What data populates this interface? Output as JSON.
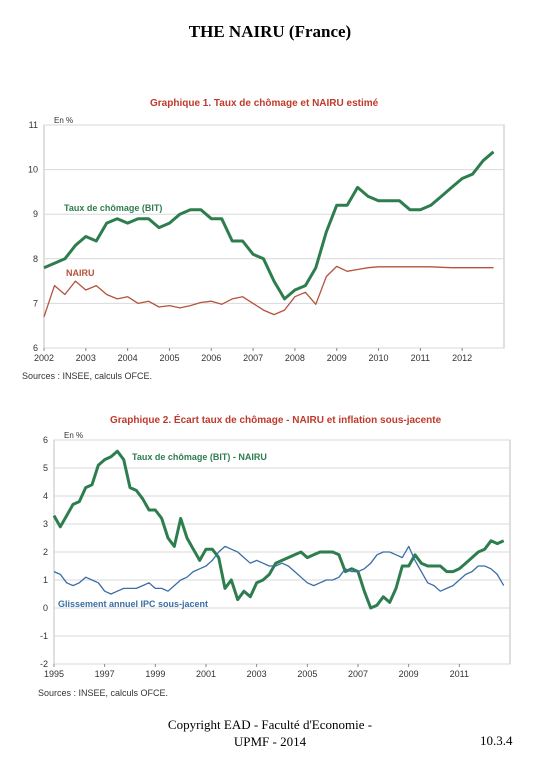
{
  "page": {
    "title": "THE NAIRU (France)",
    "footer_copyright": "Copyright EAD - Faculté d'Economie - UPMF - 2014",
    "page_number": "10.3.4"
  },
  "colors": {
    "green": "#2e7d4f",
    "red": "#b5533c",
    "blue": "#3a6ea5",
    "title_red": "#c0392b",
    "grid": "#d9d9d9"
  },
  "chart_data": [
    {
      "type": "line",
      "title": "Graphique 1. Taux de chômage et NAIRU estimé",
      "unit_label": "En %",
      "source": "Sources : INSEE, calculs OFCE.",
      "xlim": [
        2002,
        2013
      ],
      "ylim": [
        6,
        11
      ],
      "x_ticks": [
        2002,
        2003,
        2004,
        2005,
        2006,
        2007,
        2008,
        2009,
        2010,
        2011,
        2012
      ],
      "y_ticks": [
        6,
        7,
        8,
        9,
        10,
        11
      ],
      "grid": true,
      "series": [
        {
          "name": "Taux de chômage (BIT)",
          "color": "#2e7d4f",
          "x": [
            2002.0,
            2002.25,
            2002.5,
            2002.75,
            2003.0,
            2003.25,
            2003.5,
            2003.75,
            2004.0,
            2004.25,
            2004.5,
            2004.75,
            2005.0,
            2005.25,
            2005.5,
            2005.75,
            2006.0,
            2006.25,
            2006.5,
            2006.75,
            2007.0,
            2007.25,
            2007.5,
            2007.75,
            2008.0,
            2008.25,
            2008.5,
            2008.75,
            2009.0,
            2009.25,
            2009.5,
            2009.75,
            2010.0,
            2010.25,
            2010.5,
            2010.75,
            2011.0,
            2011.25,
            2011.5,
            2011.75,
            2012.0,
            2012.25,
            2012.5,
            2012.75
          ],
          "values": [
            7.8,
            7.9,
            8.0,
            8.3,
            8.5,
            8.4,
            8.8,
            8.9,
            8.8,
            8.9,
            8.9,
            8.7,
            8.8,
            9.0,
            9.1,
            9.1,
            8.9,
            8.9,
            8.4,
            8.4,
            8.1,
            8.0,
            7.5,
            7.1,
            7.3,
            7.4,
            7.8,
            8.6,
            9.2,
            9.2,
            9.6,
            9.4,
            9.3,
            9.3,
            9.3,
            9.1,
            9.1,
            9.2,
            9.4,
            9.6,
            9.8,
            9.9,
            10.2,
            10.4
          ]
        },
        {
          "name": "NAIRU",
          "color": "#b5533c",
          "x": [
            2002.0,
            2002.25,
            2002.5,
            2002.75,
            2003.0,
            2003.25,
            2003.5,
            2003.75,
            2004.0,
            2004.25,
            2004.5,
            2004.75,
            2005.0,
            2005.25,
            2005.5,
            2005.75,
            2006.0,
            2006.25,
            2006.5,
            2006.75,
            2007.0,
            2007.25,
            2007.5,
            2007.75,
            2008.0,
            2008.25,
            2008.5,
            2008.75,
            2009.0,
            2009.25,
            2009.5,
            2009.75,
            2010.0,
            2010.25,
            2010.5,
            2010.75,
            2011.0,
            2011.25,
            2011.5,
            2011.75,
            2012.0,
            2012.25,
            2012.5,
            2012.75
          ],
          "values": [
            6.7,
            7.4,
            7.2,
            7.5,
            7.3,
            7.4,
            7.2,
            7.1,
            7.15,
            7.0,
            7.05,
            6.92,
            6.95,
            6.9,
            6.95,
            7.02,
            7.05,
            6.98,
            7.1,
            7.15,
            7.0,
            6.85,
            6.75,
            6.85,
            7.15,
            7.25,
            6.98,
            7.6,
            7.83,
            7.72,
            7.76,
            7.8,
            7.82,
            7.82,
            7.82,
            7.82,
            7.82,
            7.82,
            7.81,
            7.8,
            7.8,
            7.8,
            7.8,
            7.8
          ]
        }
      ]
    },
    {
      "type": "line",
      "title": "Graphique 2. Écart taux de chômage - NAIRU et inflation sous-jacente",
      "unit_label": "En %",
      "source": "Sources : INSEE, calculs OFCE.",
      "xlim": [
        1995,
        2013
      ],
      "ylim": [
        -2,
        6
      ],
      "x_ticks": [
        1995,
        1997,
        1999,
        2001,
        2003,
        2005,
        2007,
        2009,
        2011
      ],
      "y_ticks": [
        -2,
        -1,
        0,
        1,
        2,
        3,
        4,
        5,
        6
      ],
      "grid": true,
      "series": [
        {
          "name": "Taux de chômage (BIT) - NAIRU",
          "color": "#2e7d4f",
          "x": [
            1995.0,
            1995.25,
            1995.5,
            1995.75,
            1996.0,
            1996.25,
            1996.5,
            1996.75,
            1997.0,
            1997.25,
            1997.5,
            1997.75,
            1998.0,
            1998.25,
            1998.5,
            1998.75,
            1999.0,
            1999.25,
            1999.5,
            1999.75,
            2000.0,
            2000.25,
            2000.5,
            2000.75,
            2001.0,
            2001.25,
            2001.5,
            2001.75,
            2002.0,
            2002.25,
            2002.5,
            2002.75,
            2003.0,
            2003.25,
            2003.5,
            2003.75,
            2004.0,
            2004.25,
            2004.5,
            2004.75,
            2005.0,
            2005.25,
            2005.5,
            2005.75,
            2006.0,
            2006.25,
            2006.5,
            2006.75,
            2007.0,
            2007.25,
            2007.5,
            2007.75,
            2008.0,
            2008.25,
            2008.5,
            2008.75,
            2009.0,
            2009.25,
            2009.5,
            2009.75,
            2010.0,
            2010.25,
            2010.5,
            2010.75,
            2011.0,
            2011.25,
            2011.5,
            2011.75,
            2012.0,
            2012.25,
            2012.5,
            2012.75
          ],
          "values": [
            3.3,
            2.9,
            3.3,
            3.7,
            3.8,
            4.3,
            4.4,
            5.1,
            5.3,
            5.4,
            5.6,
            5.3,
            4.3,
            4.2,
            3.9,
            3.5,
            3.5,
            3.2,
            2.5,
            2.2,
            3.2,
            2.5,
            2.1,
            1.7,
            2.1,
            2.1,
            1.8,
            0.7,
            1.0,
            0.3,
            0.6,
            0.4,
            0.9,
            1.0,
            1.2,
            1.6,
            1.7,
            1.8,
            1.9,
            2.0,
            1.8,
            1.9,
            2.0,
            2.0,
            2.0,
            1.9,
            1.3,
            1.4,
            1.3,
            0.6,
            0.0,
            0.1,
            0.4,
            0.2,
            0.7,
            1.5,
            1.5,
            1.9,
            1.6,
            1.5,
            1.5,
            1.5,
            1.3,
            1.3,
            1.4,
            1.6,
            1.8,
            2.0,
            2.1,
            2.4,
            2.3,
            2.4
          ]
        },
        {
          "name": "Glissement annuel IPC sous-jacent",
          "color": "#3a6ea5",
          "x": [
            1995.0,
            1995.25,
            1995.5,
            1995.75,
            1996.0,
            1996.25,
            1996.5,
            1996.75,
            1997.0,
            1997.25,
            1997.5,
            1997.75,
            1998.0,
            1998.25,
            1998.5,
            1998.75,
            1999.0,
            1999.25,
            1999.5,
            1999.75,
            2000.0,
            2000.25,
            2000.5,
            2000.75,
            2001.0,
            2001.25,
            2001.5,
            2001.75,
            2002.0,
            2002.25,
            2002.5,
            2002.75,
            2003.0,
            2003.25,
            2003.5,
            2003.75,
            2004.0,
            2004.25,
            2004.5,
            2004.75,
            2005.0,
            2005.25,
            2005.5,
            2005.75,
            2006.0,
            2006.25,
            2006.5,
            2006.75,
            2007.0,
            2007.25,
            2007.5,
            2007.75,
            2008.0,
            2008.25,
            2008.5,
            2008.75,
            2009.0,
            2009.25,
            2009.5,
            2009.75,
            2010.0,
            2010.25,
            2010.5,
            2010.75,
            2011.0,
            2011.25,
            2011.5,
            2011.75,
            2012.0,
            2012.25,
            2012.5,
            2012.75
          ],
          "values": [
            1.3,
            1.2,
            0.9,
            0.8,
            0.9,
            1.1,
            1.0,
            0.9,
            0.6,
            0.5,
            0.6,
            0.7,
            0.7,
            0.7,
            0.8,
            0.9,
            0.7,
            0.7,
            0.6,
            0.8,
            1.0,
            1.1,
            1.3,
            1.4,
            1.5,
            1.7,
            2.0,
            2.2,
            2.1,
            2.0,
            1.8,
            1.6,
            1.7,
            1.6,
            1.5,
            1.5,
            1.6,
            1.5,
            1.3,
            1.1,
            0.9,
            0.8,
            0.9,
            1.0,
            1.0,
            1.1,
            1.4,
            1.3,
            1.3,
            1.4,
            1.6,
            1.9,
            2.0,
            2.0,
            1.9,
            1.8,
            2.2,
            1.7,
            1.3,
            0.9,
            0.8,
            0.6,
            0.7,
            0.8,
            1.0,
            1.2,
            1.3,
            1.5,
            1.5,
            1.4,
            1.2,
            0.8
          ]
        }
      ]
    }
  ]
}
